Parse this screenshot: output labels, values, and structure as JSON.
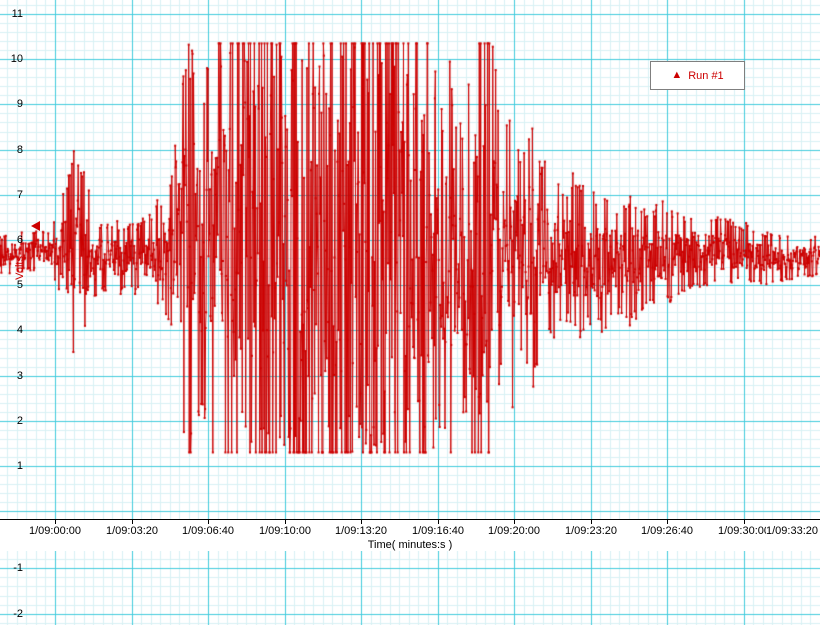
{
  "colors": {
    "background": "#ffffff",
    "grid_fine": "#d8f1f5",
    "grid_major": "#41cbdd",
    "trace": "#cc0000",
    "axis_line": "#000000",
    "tick_text": "#000000"
  },
  "legend": {
    "label": "Run #1"
  },
  "axis_marker": {
    "value": 6.3
  },
  "chart_data": {
    "type": "line",
    "title": "",
    "xlabel": "Time( minutes:s )",
    "ylabel": "Volts",
    "x_tick_labels": [
      "1/09:00:00",
      "1/09:03:20",
      "1/09:06:40",
      "1/09:10:00",
      "1/09:13:20",
      "1/09:16:40",
      "1/09:20:00",
      "1/09:23:20",
      "1/09:26:40",
      "1/09:30:00",
      "1/09:33:20"
    ],
    "y_ticks_upper": [
      11,
      10,
      9,
      8,
      7,
      6,
      5,
      4,
      3,
      2,
      1
    ],
    "y_ticks_lower": [
      -1,
      -2
    ],
    "ylim": [
      -2,
      11
    ],
    "grid": true,
    "legend_position": "top-right",
    "series": [
      {
        "name": "Run #1",
        "color": "#cc0000",
        "baseline_volts": 5.65,
        "clip_high_volts": 10.35,
        "clip_low_volts": 1.3,
        "sample_count": 1700,
        "noise_seed": 77,
        "noise_envelope_volts": [
          [
            0.0,
            0.3
          ],
          [
            0.06,
            0.32
          ],
          [
            0.075,
            0.8
          ],
          [
            0.09,
            1.7
          ],
          [
            0.105,
            1.2
          ],
          [
            0.12,
            0.55
          ],
          [
            0.15,
            0.5
          ],
          [
            0.175,
            0.55
          ],
          [
            0.2,
            0.9
          ],
          [
            0.215,
            1.6
          ],
          [
            0.225,
            3.0
          ],
          [
            0.235,
            3.4
          ],
          [
            0.245,
            2.4
          ],
          [
            0.255,
            3.0
          ],
          [
            0.27,
            3.4
          ],
          [
            0.285,
            4.0
          ],
          [
            0.3,
            6.0
          ],
          [
            0.315,
            6.5
          ],
          [
            0.33,
            5.5
          ],
          [
            0.34,
            6.5
          ],
          [
            0.355,
            6.0
          ],
          [
            0.37,
            6.5
          ],
          [
            0.385,
            5.0
          ],
          [
            0.395,
            6.3
          ],
          [
            0.41,
            6.5
          ],
          [
            0.425,
            5.8
          ],
          [
            0.44,
            6.4
          ],
          [
            0.455,
            6.0
          ],
          [
            0.47,
            6.4
          ],
          [
            0.485,
            6.2
          ],
          [
            0.5,
            5.2
          ],
          [
            0.515,
            5.8
          ],
          [
            0.525,
            3.4
          ],
          [
            0.54,
            2.4
          ],
          [
            0.55,
            3.2
          ],
          [
            0.56,
            2.0
          ],
          [
            0.572,
            3.0
          ],
          [
            0.585,
            5.8
          ],
          [
            0.6,
            4.0
          ],
          [
            0.61,
            1.8
          ],
          [
            0.625,
            2.4
          ],
          [
            0.635,
            1.6
          ],
          [
            0.648,
            2.2
          ],
          [
            0.66,
            1.5
          ],
          [
            0.675,
            1.2
          ],
          [
            0.69,
            1.0
          ],
          [
            0.705,
            1.35
          ],
          [
            0.72,
            0.95
          ],
          [
            0.735,
            1.15
          ],
          [
            0.755,
            0.85
          ],
          [
            0.77,
            1.0
          ],
          [
            0.79,
            0.75
          ],
          [
            0.81,
            0.8
          ],
          [
            0.835,
            0.6
          ],
          [
            0.86,
            0.55
          ],
          [
            0.89,
            0.5
          ],
          [
            0.92,
            0.42
          ],
          [
            0.95,
            0.36
          ],
          [
            1.0,
            0.3
          ]
        ]
      }
    ]
  }
}
